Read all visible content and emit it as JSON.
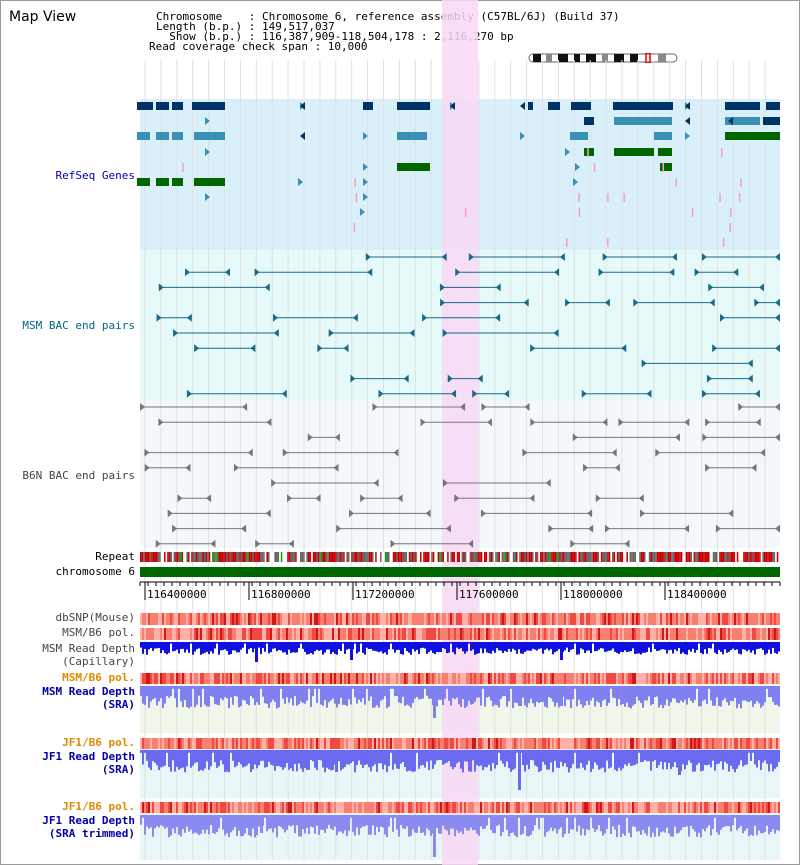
{
  "header": {
    "view_title": "Map View",
    "chromosome_line": "Chromosome    : Chromosome 6, reference assembly (C57BL/6J) (Build 37)",
    "length_line": "Length (b.p.) : 149,517,037",
    "show_line": "  Show (b.p.) : 116,387,909-118,504,178 : 2,116,270 bp",
    "coverage_line": "Read coverage check span : 10,000"
  },
  "tracks": {
    "refseq": "RefSeq Genes",
    "msm_bac": "MSM BAC end pairs",
    "b6n_bac": "B6N BAC end pairs",
    "repeat": "Repeat",
    "chromosome": "chromosome 6",
    "dbsnp": "dbSNP(Mouse)",
    "msm_pol": "MSM/B6 pol.",
    "msm_cap_1": "MSM Read Depth",
    "msm_cap_2": "(Capillary)",
    "msm_pol2": "MSM/B6 pol.",
    "msm_sra_1": "MSM Read Depth",
    "msm_sra_2": "(SRA)",
    "jf1_pol": "JF1/B6 pol.",
    "jf1_sra_1": "JF1 Read Depth",
    "jf1_sra_2": "(SRA)",
    "jf1_pol2": "JF1/B6 pol.",
    "jf1_trim_1": "JF1 Read Depth",
    "jf1_trim_2": "(SRA trimmed)"
  },
  "ruler": {
    "ticks": [
      "116400000",
      "116800000",
      "117200000",
      "117600000",
      "118000000",
      "118400000"
    ]
  },
  "colors": {
    "refseq_bg": "#d9f0fa",
    "msm_bg": "#e6fafa",
    "b6n_bg": "#f5f8fa",
    "highlight": "#f8d8f4",
    "gene_dark": "#003366",
    "gene_mid": "#3a8fb7",
    "gene_green": "#006600",
    "gene_pink": "#f8a0c0",
    "bac_msm": "#1a6a8a",
    "bac_b6n": "#777777",
    "chromosome": "#006600",
    "label_blue": "#0000aa",
    "label_teal": "#006680",
    "label_orange": "#e08a00",
    "label_gray": "#444444"
  }
}
